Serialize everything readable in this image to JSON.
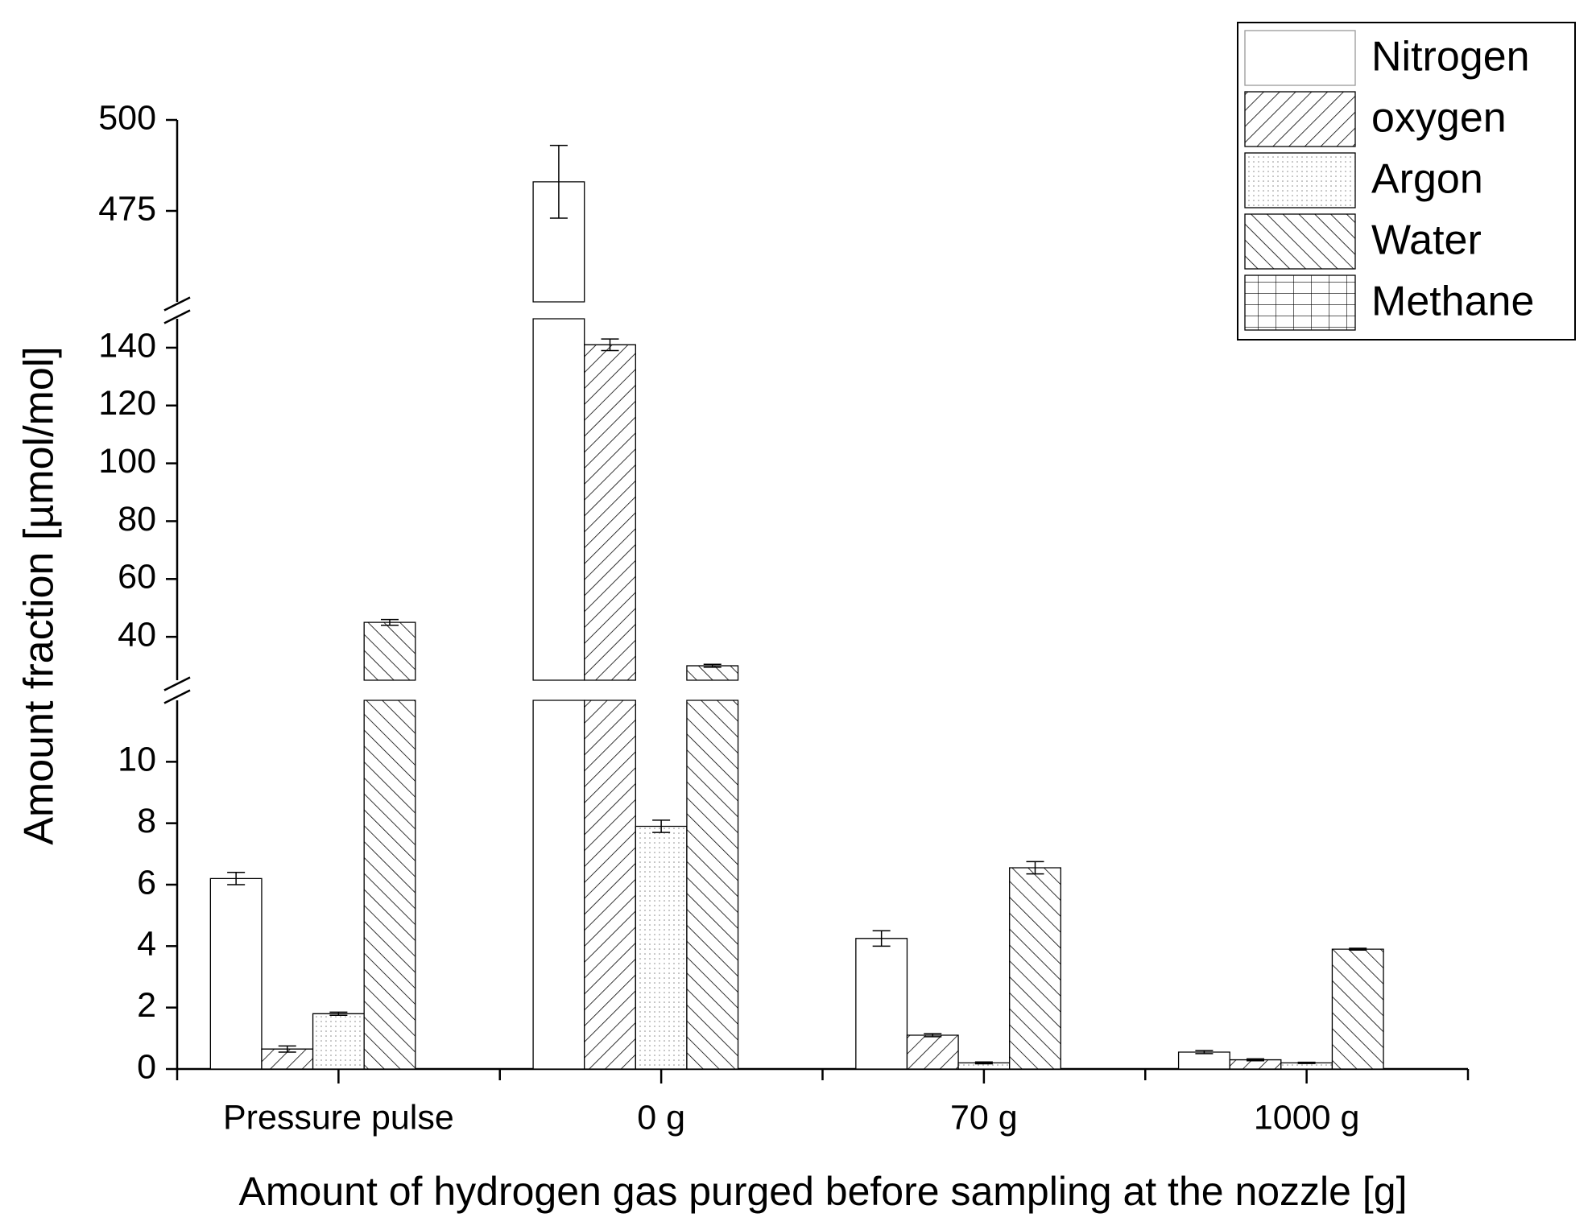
{
  "chart_data": {
    "type": "bar",
    "x_label": "Amount of hydrogen gas purged before sampling at the nozzle [g]",
    "y_label": "Amount fraction [µmol/mol]",
    "categories": [
      "Pressure pulse",
      "0 g",
      "70 g",
      "1000 g"
    ],
    "y_segments": [
      {
        "ylim": [
          0,
          12
        ],
        "yticks": [
          0,
          2,
          4,
          6,
          8,
          10
        ]
      },
      {
        "ylim": [
          25,
          150
        ],
        "yticks": [
          40,
          60,
          80,
          100,
          120,
          140
        ]
      },
      {
        "ylim": [
          450,
          500
        ],
        "yticks": [
          475,
          500
        ]
      }
    ],
    "legend": "top-right",
    "series": [
      {
        "name": "Nitrogen",
        "pattern": "none",
        "color": "#ffffff",
        "values": [
          6.2,
          483,
          4.25,
          0.55
        ],
        "errors": [
          0.2,
          10,
          0.25,
          0.05
        ]
      },
      {
        "name": "oxygen",
        "pattern": "forward-hatch",
        "color": "#ffffff",
        "values": [
          0.65,
          141,
          1.1,
          0.3
        ],
        "errors": [
          0.1,
          2,
          0.05,
          0.03
        ]
      },
      {
        "name": "Argon",
        "pattern": "dots",
        "color": "#ffffff",
        "values": [
          1.8,
          7.9,
          0.2,
          0.2
        ],
        "errors": [
          0.05,
          0.2,
          0.03,
          0.02
        ]
      },
      {
        "name": "Water",
        "pattern": "back-hatch",
        "color": "#ffffff",
        "values": [
          45,
          30,
          6.55,
          3.9
        ],
        "errors": [
          1,
          0.5,
          0.2,
          0.03
        ]
      },
      {
        "name": "Methane",
        "pattern": "grid",
        "color": "#ffffff",
        "values": [
          0,
          0,
          0,
          0
        ],
        "errors": [
          0,
          0,
          0,
          0
        ]
      }
    ]
  }
}
